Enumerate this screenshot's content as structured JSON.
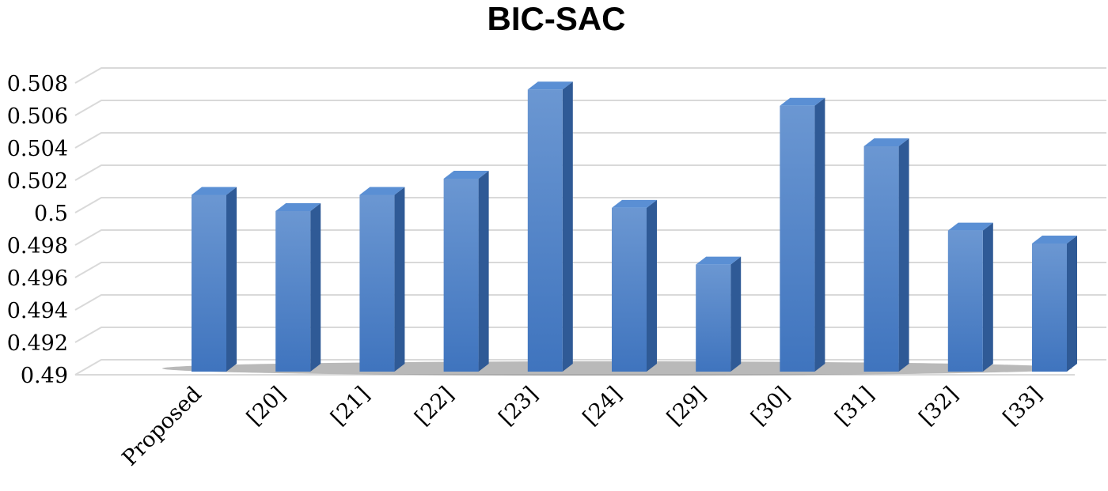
{
  "chart_data": {
    "type": "bar",
    "title": "BIC-SAC",
    "xlabel": "",
    "ylabel": "",
    "categories": [
      "Proposed",
      "[20]",
      "[21]",
      "[22]",
      "[23]",
      "[24]",
      "[29]",
      "[30]",
      "[31]",
      "[32]",
      "[33]"
    ],
    "values": [
      0.501,
      0.5,
      0.501,
      0.502,
      0.5075,
      0.5002,
      0.4967,
      0.5065,
      0.504,
      0.4988,
      0.498
    ],
    "ylim": [
      0.49,
      0.508
    ],
    "yticks": [
      "0.49",
      "0.492",
      "0.494",
      "0.496",
      "0.498",
      "0.5",
      "0.502",
      "0.504",
      "0.506",
      "0.508"
    ],
    "grid": true,
    "bar_color": "#4a7ec4",
    "bar_side_color": "#2f5a96",
    "bar_top_color": "#5a8fd4"
  }
}
